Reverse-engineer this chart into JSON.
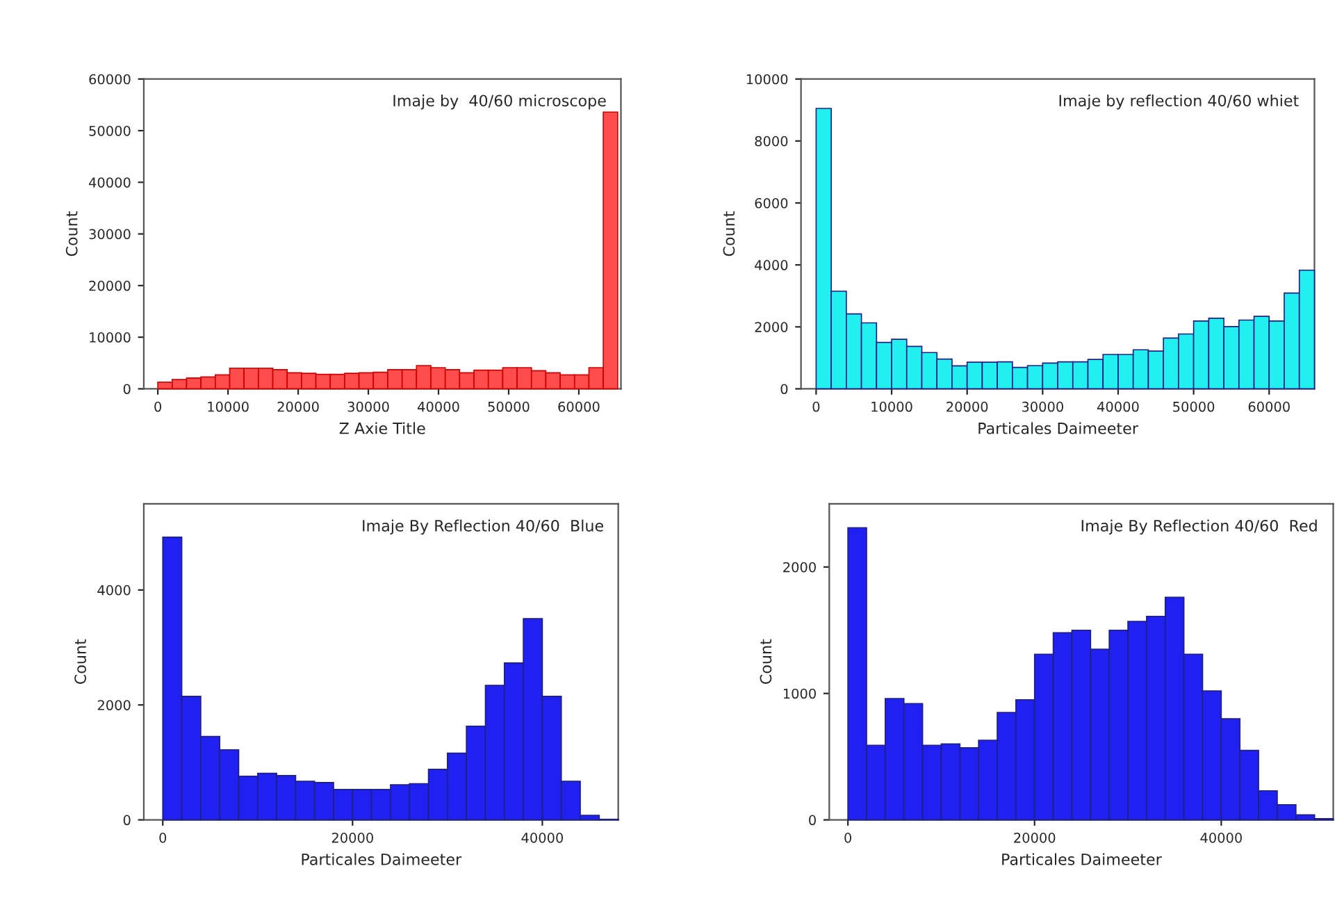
{
  "chart_data": [
    {
      "type": "histogram",
      "xlabel": "Z Axie Title",
      "ylabel": "Count",
      "annotations": [
        "Imaje by  40/60 microscope"
      ],
      "color": "#ff4d4d",
      "bins": [
        0,
        2048,
        4096,
        6144,
        8192,
        10240,
        12288,
        14336,
        16384,
        18432,
        20480,
        22528,
        24576,
        26624,
        28672,
        30720,
        32768,
        34816,
        36864,
        38912,
        40960,
        43008,
        45056,
        47104,
        49152,
        51200,
        53248,
        55296,
        57344,
        59392,
        61440,
        63488,
        65536
      ],
      "values": [
        1300,
        1800,
        2100,
        2300,
        2700,
        4000,
        4000,
        4000,
        3700,
        3100,
        3000,
        2800,
        2800,
        3000,
        3100,
        3200,
        3700,
        3700,
        4500,
        4100,
        3700,
        3100,
        3600,
        3600,
        4100,
        4100,
        3500,
        3100,
        2700,
        2700,
        4100,
        53600
      ],
      "xlim": [
        -2000,
        66000
      ],
      "xticks": [
        0,
        10000,
        20000,
        30000,
        40000,
        50000,
        60000
      ],
      "ylim": [
        0,
        60000
      ],
      "yticks": [
        0,
        10000,
        20000,
        30000,
        40000,
        50000,
        60000
      ]
    },
    {
      "type": "histogram",
      "xlabel": "Particales Daimeeter",
      "ylabel": "Count",
      "annotations": [
        "Imaje by reflection 40/60 whiet"
      ],
      "color": "#22f0f0",
      "bins": [
        0,
        2000,
        4000,
        6000,
        8000,
        10000,
        12000,
        14000,
        16000,
        18000,
        20000,
        22000,
        24000,
        26000,
        28000,
        30000,
        32000,
        34000,
        36000,
        38000,
        40000,
        42000,
        44000,
        46000,
        48000,
        50000,
        52000,
        54000,
        56000,
        58000,
        60000,
        62000,
        64000,
        66000
      ],
      "values": [
        9050,
        3150,
        2420,
        2130,
        1500,
        1600,
        1370,
        1170,
        960,
        740,
        860,
        860,
        870,
        690,
        750,
        830,
        870,
        870,
        950,
        1110,
        1110,
        1260,
        1220,
        1640,
        1770,
        2190,
        2280,
        2010,
        2220,
        2340,
        2190,
        3090,
        3830
      ],
      "xlim": [
        -2000,
        66000
      ],
      "xticks": [
        0,
        10000,
        20000,
        30000,
        40000,
        50000,
        60000
      ],
      "ylim": [
        0,
        10000
      ],
      "yticks": [
        0,
        2000,
        4000,
        6000,
        8000,
        10000
      ]
    },
    {
      "type": "histogram",
      "xlabel": "Particales Daimeeter",
      "ylabel": "Count",
      "annotations": [
        "Imaje By Reflection 40/60  Blue"
      ],
      "color": "#2020f0",
      "bins": [
        0,
        2000,
        4000,
        6000,
        8000,
        10000,
        12000,
        14000,
        16000,
        18000,
        20000,
        22000,
        24000,
        26000,
        28000,
        30000,
        32000,
        34000,
        36000,
        38000,
        40000,
        42000,
        44000,
        46000,
        48000
      ],
      "values": [
        4920,
        2150,
        1450,
        1220,
        760,
        810,
        770,
        670,
        650,
        530,
        530,
        530,
        610,
        630,
        880,
        1160,
        1630,
        2340,
        2730,
        3500,
        2150,
        670,
        80,
        10
      ],
      "xlim": [
        -2000,
        48000
      ],
      "xticks": [
        0,
        20000,
        40000
      ],
      "ylim": [
        0,
        5500
      ],
      "yticks": [
        0,
        2000,
        4000
      ]
    },
    {
      "type": "histogram",
      "xlabel": "Particales Daimeeter",
      "ylabel": "Count",
      "annotations": [
        "Imaje By Reflection 40/60  Red"
      ],
      "color": "#2020f0",
      "bins": [
        0,
        2000,
        4000,
        6000,
        8000,
        10000,
        12000,
        14000,
        16000,
        18000,
        20000,
        22000,
        24000,
        26000,
        28000,
        30000,
        32000,
        34000,
        36000,
        38000,
        40000,
        42000,
        44000,
        46000,
        48000,
        50000,
        52000
      ],
      "values": [
        2310,
        590,
        960,
        920,
        590,
        600,
        570,
        630,
        850,
        950,
        1310,
        1480,
        1500,
        1350,
        1500,
        1570,
        1610,
        1760,
        1310,
        1020,
        800,
        550,
        230,
        120,
        40,
        10
      ],
      "xlim": [
        -2000,
        52000
      ],
      "xticks": [
        0,
        20000,
        40000
      ],
      "ylim": [
        0,
        2500
      ],
      "yticks": [
        0,
        1000,
        2000
      ]
    }
  ]
}
